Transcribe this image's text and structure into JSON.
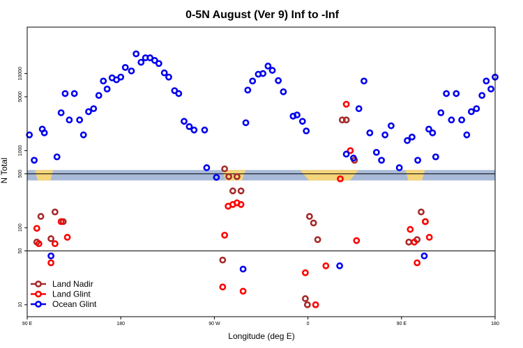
{
  "chart_data": {
    "type": "scatter",
    "title": "0-5N August (Ver 9)   Inf to -Inf",
    "xlabel": "Longitude (deg E)",
    "ylabel": "N Total",
    "y_scale": "log",
    "xlim": [
      90,
      450
    ],
    "ylim": [
      7,
      40000
    ],
    "x_ticks": [
      {
        "value": 90,
        "label": "90 E"
      },
      {
        "value": 162,
        "label": "180"
      },
      {
        "value": 234,
        "label": "90 W"
      },
      {
        "value": 306,
        "label": "0"
      },
      {
        "value": 378,
        "label": "90 E"
      },
      {
        "value": 450,
        "label": "180"
      }
    ],
    "y_ticks": [
      {
        "value": 10,
        "label": "10"
      },
      {
        "value": 50,
        "label": "50"
      },
      {
        "value": 100,
        "label": "100"
      },
      {
        "value": 500,
        "label": "500"
      },
      {
        "value": 1000,
        "label": "1000"
      },
      {
        "value": 5000,
        "label": "5000"
      },
      {
        "value": 10000,
        "label": "10000"
      }
    ],
    "reference_lines": [
      50,
      500
    ],
    "band": {
      "y_min": 410,
      "y_max": 560,
      "color": "#a8bad8",
      "land_color": "#f5d57a"
    },
    "grid": false,
    "legend_position": "bottom-left",
    "series": [
      {
        "name": "Land Nadir",
        "color": "#a52a2a",
        "points": [
          [
            97.4,
            65
          ],
          [
            100.5,
            140
          ],
          [
            108.3,
            72
          ],
          [
            111.4,
            160
          ],
          [
            117.7,
            120
          ],
          [
            240.4,
            38
          ],
          [
            241.9,
            580
          ],
          [
            245.1,
            460
          ],
          [
            248.2,
            300
          ],
          [
            251.4,
            460
          ],
          [
            254.5,
            300
          ],
          [
            305.6,
            10
          ],
          [
            304.0,
            12
          ],
          [
            307.2,
            140
          ],
          [
            310.3,
            115
          ],
          [
            313.5,
            70
          ],
          [
            332.4,
            2500
          ],
          [
            335.5,
            2500
          ],
          [
            341.8,
            750
          ],
          [
            383.6,
            65
          ],
          [
            390.0,
            70
          ],
          [
            393.1,
            160
          ],
          [
            396.3,
            120
          ]
        ]
      },
      {
        "name": "Land Glint",
        "color": "#ff0000",
        "points": [
          [
            97.4,
            98
          ],
          [
            99.0,
            62
          ],
          [
            108.3,
            35
          ],
          [
            111.4,
            62
          ],
          [
            116.1,
            120
          ],
          [
            120.9,
            75
          ],
          [
            241.9,
            80
          ],
          [
            244.6,
            190
          ],
          [
            248.2,
            200
          ],
          [
            251.4,
            210
          ],
          [
            254.5,
            200
          ],
          [
            240.4,
            17
          ],
          [
            256.1,
            15
          ],
          [
            311.9,
            10
          ],
          [
            304.0,
            26
          ],
          [
            319.8,
            32
          ],
          [
            330.9,
            430
          ],
          [
            335.5,
            4000
          ],
          [
            338.6,
            1000
          ],
          [
            343.4,
            68
          ],
          [
            384.7,
            95
          ],
          [
            387.8,
            65
          ],
          [
            390.0,
            35
          ],
          [
            396.3,
            120
          ],
          [
            399.4,
            75
          ]
        ]
      },
      {
        "name": "Ocean Glint",
        "color": "#0000ee",
        "points": [
          [
            91.7,
            1600
          ],
          [
            95.4,
            750
          ],
          [
            101.6,
            1900
          ],
          [
            103.2,
            1700
          ],
          [
            108.3,
            43
          ],
          [
            112.9,
            830
          ],
          [
            116.1,
            3100
          ],
          [
            119.2,
            5500
          ],
          [
            122.4,
            2500
          ],
          [
            126.3,
            5500
          ],
          [
            130.3,
            2500
          ],
          [
            133.3,
            1600
          ],
          [
            137.2,
            3200
          ],
          [
            141.1,
            3500
          ],
          [
            145.1,
            5200
          ],
          [
            148.6,
            8000
          ],
          [
            151.5,
            6300
          ],
          [
            155.3,
            8800
          ],
          [
            158.7,
            8300
          ],
          [
            162.0,
            9000
          ],
          [
            165.5,
            12000
          ],
          [
            170.2,
            10800
          ],
          [
            173.8,
            18000
          ],
          [
            177.6,
            14000
          ],
          [
            181.0,
            16000
          ],
          [
            184.5,
            16000
          ],
          [
            188.1,
            14800
          ],
          [
            191.3,
            13500
          ],
          [
            195.5,
            10200
          ],
          [
            198.9,
            9000
          ],
          [
            203.4,
            6000
          ],
          [
            206.6,
            5500
          ],
          [
            210.7,
            2400
          ],
          [
            214.7,
            2050
          ],
          [
            218.4,
            1850
          ],
          [
            226.5,
            1850
          ],
          [
            228.1,
            600
          ],
          [
            235.6,
            450
          ],
          [
            256.1,
            29
          ],
          [
            258.2,
            2300
          ],
          [
            259.7,
            6100
          ],
          [
            263.4,
            8000
          ],
          [
            267.8,
            9800
          ],
          [
            271.4,
            10000
          ],
          [
            275.3,
            12500
          ],
          [
            278.6,
            11000
          ],
          [
            283.2,
            8100
          ],
          [
            287.1,
            5800
          ],
          [
            294.6,
            2800
          ],
          [
            297.6,
            2900
          ],
          [
            301.8,
            2400
          ],
          [
            304.7,
            1800
          ],
          [
            330.4,
            32
          ],
          [
            335.5,
            900
          ],
          [
            341.0,
            800
          ],
          [
            345.2,
            3500
          ],
          [
            349.1,
            8000
          ],
          [
            353.6,
            1700
          ],
          [
            358.7,
            950
          ],
          [
            362.6,
            750
          ],
          [
            365.3,
            1600
          ],
          [
            370.0,
            2100
          ],
          [
            376.3,
            600
          ],
          [
            382.4,
            1350
          ],
          [
            386.1,
            1500
          ],
          [
            390.5,
            750
          ],
          [
            395.5,
            43
          ],
          [
            399.0,
            1900
          ],
          [
            401.9,
            1700
          ],
          [
            404.3,
            830
          ],
          [
            408.3,
            3100
          ],
          [
            412.5,
            5500
          ],
          [
            416.4,
            2500
          ],
          [
            420.1,
            5500
          ],
          [
            424.3,
            2500
          ],
          [
            428.2,
            1600
          ],
          [
            431.7,
            3200
          ],
          [
            435.7,
            3500
          ],
          [
            439.9,
            5200
          ],
          [
            443.2,
            8000
          ],
          [
            446.8,
            6300
          ],
          [
            450.0,
            9000
          ]
        ]
      }
    ]
  }
}
